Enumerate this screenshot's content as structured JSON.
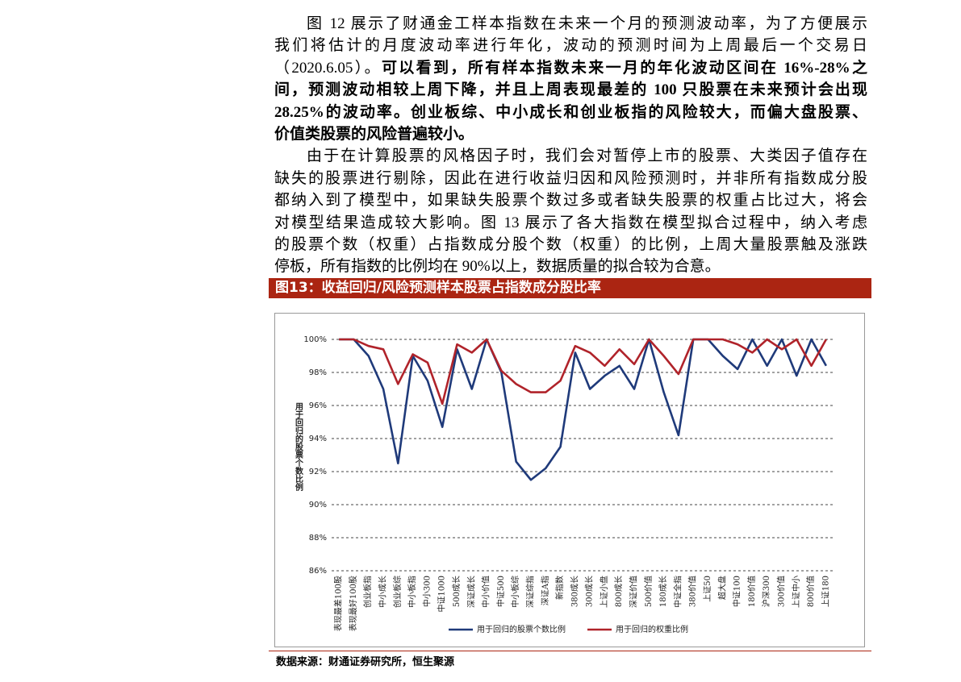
{
  "body": {
    "paragraphs": [
      {
        "lines": [
          [
            {
              "text": "图 12 展示了财通金工样本指数在未来一个月的预测波动率，为了方便展示"
            }
          ],
          [
            {
              "text": "我们将估计的月度波动率进行年化，波动的预测时间为上周最后一个交易日"
            }
          ],
          [
            {
              "text": "（2020.6.05）。"
            },
            {
              "text": "可以看到，所有样本指数未来一月的年化波动区间在 16%-28%之",
              "bold": true
            }
          ],
          [
            {
              "text": "间，预测波动相较上周下降，并且上周表现最差的 100 只股票在未来预计会出现",
              "bold": true
            }
          ],
          [
            {
              "text": "28.25%的波动率。创业板综、中小成长和创业板指的风险较大，而偏大盘股票、",
              "bold": true
            }
          ],
          [
            {
              "text": "价值类股票的风险普遍较小。",
              "bold": true
            }
          ]
        ]
      },
      {
        "lines": [
          [
            {
              "text": "由于在计算股票的风格因子时，我们会对暂停上市的股票、大类因子值存在"
            }
          ],
          [
            {
              "text": "缺失的股票进行剔除，因此在进行收益归因和风险预测时，并非所有指数成分股"
            }
          ],
          [
            {
              "text": "都纳入到了模型中，如果缺失股票个数过多或者缺失股票的权重占比过大，将会"
            }
          ],
          [
            {
              "text": "对模型结果造成较大影响。图 13 展示了各大指数在模型拟合过程中，纳入考虑"
            }
          ],
          [
            {
              "text": "的股票个数（权重）占指数成分股个数（权重）的比例，上周大量股票触及涨跌"
            }
          ],
          [
            {
              "text": "停板，所有指数的比例均在 90%以上，数据质量的拟合较为合意。"
            }
          ]
        ]
      }
    ]
  },
  "figure": {
    "caption": "图13：收益回归/风险预测样本股票占指数成分股比率",
    "source": "数据来源：财通证券研究所，恒生聚源"
  },
  "chart_data": {
    "type": "line",
    "y_label": "用于回归的股票个数比例",
    "categories": [
      "表现最差100股",
      "表现最好100股",
      "创业板指",
      "中小成长",
      "创业板综",
      "中小板指",
      "中小300",
      "中证1000",
      "500成长",
      "深证成长",
      "中小价值",
      "中证500",
      "中小板综",
      "深证综指",
      "深证A指",
      "新指数",
      "380成长",
      "300成长",
      "上证小盘",
      "800成长",
      "深证价值",
      "500价值",
      "180成长",
      "中证全指",
      "380价值",
      "上证50",
      "超大盘",
      "中证100",
      "180价值",
      "沪深300",
      "300价值",
      "上证中小",
      "800价值",
      "上证180"
    ],
    "series": [
      {
        "name": "用于回归的股票个数比例",
        "color": "#1f3a7a",
        "values": [
          100,
          100,
          99,
          97,
          92.5,
          99,
          97.5,
          94.7,
          99.4,
          97,
          100,
          98,
          92.6,
          91.5,
          92.2,
          93.5,
          99.2,
          97,
          97.8,
          98.4,
          97,
          100,
          96.8,
          94.2,
          100,
          100,
          99,
          98.2,
          100,
          98.4,
          100,
          97.8,
          100,
          98.4
        ]
      },
      {
        "name": "用于回归的权重比例",
        "color": "#b0232a",
        "values": [
          100,
          100,
          99.6,
          99.4,
          97.3,
          99.1,
          98.6,
          96.1,
          99.7,
          99.2,
          100,
          98.1,
          97.3,
          96.8,
          96.8,
          97.5,
          99.6,
          99.2,
          98.4,
          99.4,
          98.5,
          100,
          99,
          97.9,
          100,
          100,
          100,
          99.7,
          99.2,
          100,
          99.4,
          100,
          98.4,
          100
        ]
      }
    ],
    "ylim": [
      86,
      100
    ],
    "yticks": [
      {
        "value": 86,
        "label": "86%"
      },
      {
        "value": 88,
        "label": "88%"
      },
      {
        "value": 90,
        "label": "90%"
      },
      {
        "value": 92,
        "label": "92%"
      },
      {
        "value": 94,
        "label": "94%"
      },
      {
        "value": 96,
        "label": "96%"
      },
      {
        "value": 98,
        "label": "98%"
      },
      {
        "value": 100,
        "label": "100%"
      }
    ],
    "grid": true,
    "legend": "bottom"
  }
}
